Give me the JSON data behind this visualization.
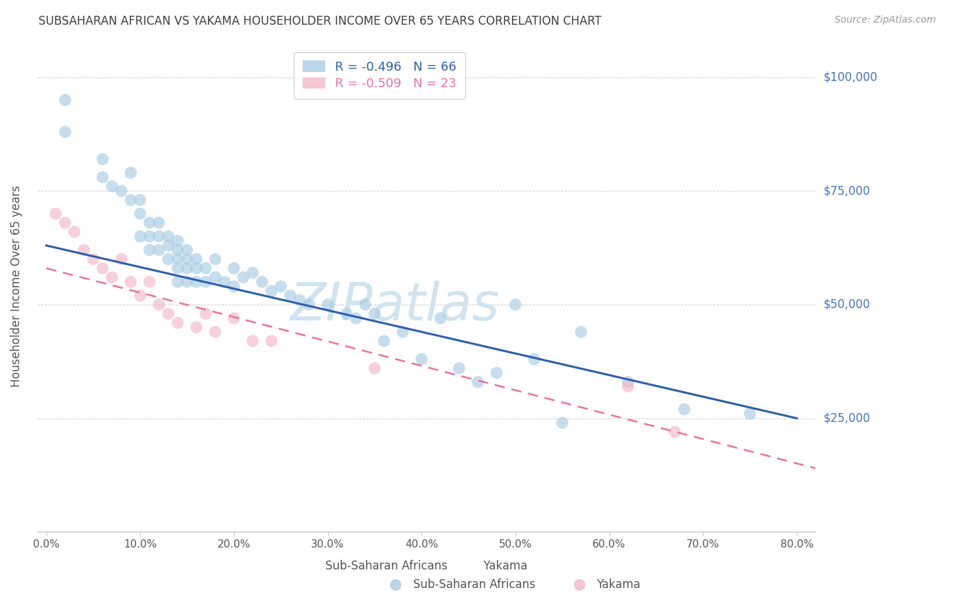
{
  "title": "SUBSAHARAN AFRICAN VS YAKAMA HOUSEHOLDER INCOME OVER 65 YEARS CORRELATION CHART",
  "source": "Source: ZipAtlas.com",
  "ylabel": "Householder Income Over 65 years",
  "xlabel_ticks": [
    "0.0%",
    "10.0%",
    "20.0%",
    "30.0%",
    "40.0%",
    "50.0%",
    "60.0%",
    "70.0%",
    "80.0%"
  ],
  "xlabel_vals": [
    0,
    10,
    20,
    30,
    40,
    50,
    60,
    70,
    80
  ],
  "ytick_labels": [
    "$25,000",
    "$50,000",
    "$75,000",
    "$100,000"
  ],
  "ytick_vals": [
    25000,
    50000,
    75000,
    100000
  ],
  "xlim": [
    -1,
    82
  ],
  "ylim": [
    0,
    108000
  ],
  "blue_color": "#a8cce4",
  "pink_color": "#f4b8c8",
  "blue_line_color": "#2b5fad",
  "pink_line_color": "#e8729a",
  "watermark": "ZIPatlas",
  "watermark_color": "#d0e4f0",
  "legend_blue_label": "Sub-Saharan Africans",
  "legend_pink_label": "Yakama",
  "legend_blue_r": "R = -0.496",
  "legend_blue_n": "N = 66",
  "legend_pink_r": "R = -0.509",
  "legend_pink_n": "N = 23",
  "blue_scatter_x": [
    2,
    2,
    6,
    6,
    7,
    8,
    9,
    9,
    10,
    10,
    10,
    11,
    11,
    11,
    12,
    12,
    12,
    13,
    13,
    13,
    14,
    14,
    14,
    14,
    14,
    15,
    15,
    15,
    15,
    16,
    16,
    16,
    17,
    17,
    18,
    18,
    19,
    20,
    20,
    21,
    22,
    23,
    24,
    25,
    26,
    27,
    28,
    30,
    32,
    33,
    34,
    35,
    36,
    38,
    40,
    42,
    44,
    46,
    48,
    50,
    52,
    55,
    57,
    62,
    68,
    75
  ],
  "blue_scatter_y": [
    95000,
    88000,
    82000,
    78000,
    76000,
    75000,
    79000,
    73000,
    73000,
    70000,
    65000,
    68000,
    65000,
    62000,
    68000,
    65000,
    62000,
    65000,
    63000,
    60000,
    64000,
    62000,
    60000,
    58000,
    55000,
    62000,
    60000,
    58000,
    55000,
    60000,
    58000,
    55000,
    58000,
    55000,
    60000,
    56000,
    55000,
    58000,
    54000,
    56000,
    57000,
    55000,
    53000,
    54000,
    52000,
    51000,
    50000,
    50000,
    48000,
    47000,
    50000,
    48000,
    42000,
    44000,
    38000,
    47000,
    36000,
    33000,
    35000,
    50000,
    38000,
    24000,
    44000,
    33000,
    27000,
    26000
  ],
  "pink_scatter_x": [
    1,
    2,
    3,
    4,
    5,
    6,
    7,
    8,
    9,
    10,
    11,
    12,
    13,
    14,
    16,
    17,
    18,
    20,
    22,
    24,
    35,
    62,
    67
  ],
  "pink_scatter_y": [
    70000,
    68000,
    66000,
    62000,
    60000,
    58000,
    56000,
    60000,
    55000,
    52000,
    55000,
    50000,
    48000,
    46000,
    45000,
    48000,
    44000,
    47000,
    42000,
    42000,
    36000,
    32000,
    22000
  ],
  "blue_line_x0": 0,
  "blue_line_x1": 80,
  "blue_line_y0": 63000,
  "blue_line_y1": 25000,
  "pink_line_x0": 0,
  "pink_line_x1": 82,
  "pink_line_y0": 58000,
  "pink_line_y1": 14000,
  "background_color": "#ffffff",
  "grid_color": "#cccccc",
  "title_color": "#404040",
  "axis_label_color": "#555555",
  "ytick_color": "#4472c4",
  "xtick_color": "#555555"
}
